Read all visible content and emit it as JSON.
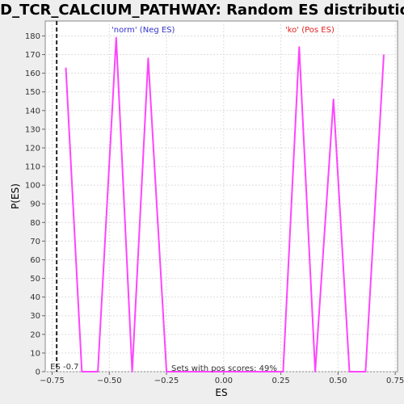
{
  "chart_data": {
    "type": "line",
    "title": "PID_TCR_CALCIUM_PATHWAY: Random ES distribution",
    "xlabel": "ES",
    "ylabel": "P(ES)",
    "xlim": [
      -0.78,
      0.76
    ],
    "ylim": [
      0,
      188
    ],
    "x_ticks": [
      -0.75,
      -0.5,
      -0.25,
      0.0,
      0.25,
      0.5,
      0.75
    ],
    "x_tick_labels": [
      "−0.75",
      "−0.50",
      "−0.25",
      "0.00",
      "0.25",
      "0.50",
      "0.75"
    ],
    "y_ticks": [
      0,
      10,
      20,
      30,
      40,
      50,
      60,
      70,
      80,
      90,
      100,
      110,
      120,
      130,
      140,
      150,
      160,
      170,
      180
    ],
    "grid": true,
    "series": [
      {
        "color": "#ff44ff",
        "x": [
          -0.69,
          -0.62,
          -0.55,
          -0.47,
          -0.4,
          -0.33,
          -0.25,
          0.26,
          0.33,
          0.4,
          0.48,
          0.55,
          0.62,
          0.7
        ],
        "y": [
          163,
          0,
          0,
          179,
          0,
          168,
          0,
          0,
          174,
          0,
          146,
          0,
          0,
          170
        ]
      }
    ],
    "vline": {
      "x": -0.73,
      "label": "ES -0.7"
    },
    "annotations": {
      "neg": {
        "text": "'norm' (Neg ES)",
        "color": "#3333cc"
      },
      "pos": {
        "text": "'ko' (Pos ES)",
        "color": "#dd2222"
      },
      "footer": {
        "text": "Sets with pos scores: 49%"
      }
    }
  }
}
